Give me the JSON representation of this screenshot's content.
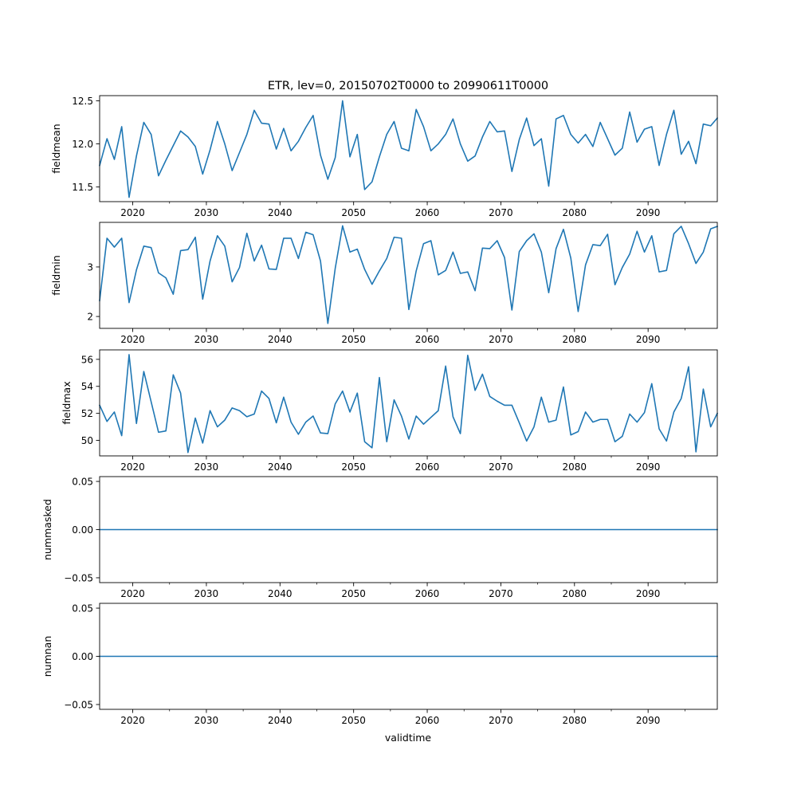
{
  "figure": {
    "title": "ETR, lev=0, 20150702T0000 to 20990611T0000",
    "xlabel": "validtime"
  },
  "colors": {
    "line": "#1f77b4",
    "axis": "#000000",
    "background": "#ffffff"
  },
  "chart_data": [
    {
      "type": "line",
      "ylabel": "fieldmean",
      "xlim": [
        2015.5,
        2099.4
      ],
      "ylim": [
        11.33,
        12.56
      ],
      "x_ticks": [
        2020,
        2030,
        2040,
        2050,
        2060,
        2070,
        2080,
        2090
      ],
      "x_tick_labels": [
        "2020",
        "2030",
        "2040",
        "2050",
        "2060",
        "2070",
        "2080",
        "2090"
      ],
      "y_ticks": [
        11.5,
        12.0,
        12.5
      ],
      "y_tick_labels": [
        "11.5",
        "12.0",
        "12.5"
      ],
      "x": [
        2015.5,
        2016.5,
        2017.5,
        2018.5,
        2019.5,
        2020.5,
        2021.5,
        2022.5,
        2023.5,
        2024.5,
        2025.5,
        2026.5,
        2027.5,
        2028.5,
        2029.5,
        2030.5,
        2031.5,
        2032.5,
        2033.5,
        2034.5,
        2035.5,
        2036.5,
        2037.5,
        2038.5,
        2039.5,
        2040.5,
        2041.5,
        2042.5,
        2043.5,
        2044.5,
        2045.5,
        2046.5,
        2047.5,
        2048.5,
        2049.5,
        2050.5,
        2051.5,
        2052.5,
        2053.5,
        2054.5,
        2055.5,
        2056.5,
        2057.5,
        2058.5,
        2059.5,
        2060.5,
        2061.5,
        2062.5,
        2063.5,
        2064.5,
        2065.5,
        2066.5,
        2067.5,
        2068.5,
        2069.5,
        2070.5,
        2071.5,
        2072.5,
        2073.5,
        2074.5,
        2075.5,
        2076.5,
        2077.5,
        2078.5,
        2079.5,
        2080.5,
        2081.5,
        2082.5,
        2083.5,
        2084.5,
        2085.5,
        2086.5,
        2087.5,
        2088.5,
        2089.5,
        2090.5,
        2091.5,
        2092.5,
        2093.5,
        2094.5,
        2095.5,
        2096.5,
        2097.5,
        2098.5,
        2099.4
      ],
      "series": [
        {
          "name": "fieldmean",
          "values": [
            11.75,
            12.06,
            11.82,
            12.2,
            11.38,
            11.86,
            12.25,
            12.11,
            11.63,
            11.81,
            11.98,
            12.15,
            12.08,
            11.97,
            11.65,
            11.93,
            12.26,
            12.0,
            11.69,
            11.9,
            12.11,
            12.39,
            12.24,
            12.23,
            11.94,
            12.18,
            11.92,
            12.03,
            12.19,
            12.33,
            11.87,
            11.59,
            11.84,
            12.5,
            11.85,
            12.11,
            11.47,
            11.56,
            11.85,
            12.11,
            12.26,
            11.95,
            11.92,
            12.4,
            12.2,
            11.92,
            12.0,
            12.11,
            12.29,
            12.0,
            11.8,
            11.86,
            12.08,
            12.26,
            12.14,
            12.15,
            11.68,
            12.05,
            12.3,
            11.98,
            12.06,
            11.51,
            12.29,
            12.33,
            12.11,
            12.01,
            12.11,
            11.97,
            12.25,
            12.06,
            11.87,
            11.95,
            12.37,
            12.02,
            12.17,
            12.2,
            11.75,
            12.11,
            12.39,
            11.88,
            12.03,
            11.77,
            12.23,
            12.21,
            12.3
          ]
        }
      ]
    },
    {
      "type": "line",
      "ylabel": "fieldmin",
      "xlim": [
        2015.5,
        2099.4
      ],
      "ylim": [
        1.76,
        3.9
      ],
      "x_ticks": [
        2020,
        2030,
        2040,
        2050,
        2060,
        2070,
        2080,
        2090
      ],
      "x_tick_labels": [
        "2020",
        "2030",
        "2040",
        "2050",
        "2060",
        "2070",
        "2080",
        "2090"
      ],
      "y_ticks": [
        2,
        3
      ],
      "y_tick_labels": [
        "2",
        "3"
      ],
      "x": [
        2015.5,
        2016.5,
        2017.5,
        2018.5,
        2019.5,
        2020.5,
        2021.5,
        2022.5,
        2023.5,
        2024.5,
        2025.5,
        2026.5,
        2027.5,
        2028.5,
        2029.5,
        2030.5,
        2031.5,
        2032.5,
        2033.5,
        2034.5,
        2035.5,
        2036.5,
        2037.5,
        2038.5,
        2039.5,
        2040.5,
        2041.5,
        2042.5,
        2043.5,
        2044.5,
        2045.5,
        2046.5,
        2047.5,
        2048.5,
        2049.5,
        2050.5,
        2051.5,
        2052.5,
        2053.5,
        2054.5,
        2055.5,
        2056.5,
        2057.5,
        2058.5,
        2059.5,
        2060.5,
        2061.5,
        2062.5,
        2063.5,
        2064.5,
        2065.5,
        2066.5,
        2067.5,
        2068.5,
        2069.5,
        2070.5,
        2071.5,
        2072.5,
        2073.5,
        2074.5,
        2075.5,
        2076.5,
        2077.5,
        2078.5,
        2079.5,
        2080.5,
        2081.5,
        2082.5,
        2083.5,
        2084.5,
        2085.5,
        2086.5,
        2087.5,
        2088.5,
        2089.5,
        2090.5,
        2091.5,
        2092.5,
        2093.5,
        2094.5,
        2095.5,
        2096.5,
        2097.5,
        2098.5,
        2099.4
      ],
      "series": [
        {
          "name": "fieldmin",
          "values": [
            2.32,
            3.58,
            3.4,
            3.58,
            2.28,
            2.94,
            3.42,
            3.39,
            2.88,
            2.78,
            2.45,
            3.33,
            3.35,
            3.6,
            2.35,
            3.12,
            3.63,
            3.42,
            2.7,
            2.99,
            3.68,
            3.12,
            3.44,
            2.96,
            2.95,
            3.58,
            3.58,
            3.17,
            3.7,
            3.65,
            3.12,
            1.86,
            2.97,
            3.83,
            3.3,
            3.36,
            2.95,
            2.65,
            2.92,
            3.17,
            3.6,
            3.58,
            2.14,
            2.92,
            3.47,
            3.53,
            2.84,
            2.93,
            3.3,
            2.87,
            2.9,
            2.52,
            3.38,
            3.37,
            3.53,
            3.19,
            2.13,
            3.31,
            3.53,
            3.67,
            3.3,
            2.48,
            3.37,
            3.76,
            3.18,
            2.1,
            3.04,
            3.45,
            3.43,
            3.66,
            2.64,
            2.99,
            3.26,
            3.72,
            3.3,
            3.63,
            2.9,
            2.93,
            3.67,
            3.82,
            3.47,
            3.07,
            3.3,
            3.77,
            3.82
          ]
        }
      ]
    },
    {
      "type": "line",
      "ylabel": "fieldmax",
      "xlim": [
        2015.5,
        2099.4
      ],
      "ylim": [
        48.85,
        56.7
      ],
      "x_ticks": [
        2020,
        2030,
        2040,
        2050,
        2060,
        2070,
        2080,
        2090
      ],
      "x_tick_labels": [
        "2020",
        "2030",
        "2040",
        "2050",
        "2060",
        "2070",
        "2080",
        "2090"
      ],
      "y_ticks": [
        50,
        52,
        54,
        56
      ],
      "y_tick_labels": [
        "50",
        "52",
        "54",
        "56"
      ],
      "x": [
        2015.5,
        2016.5,
        2017.5,
        2018.5,
        2019.5,
        2020.5,
        2021.5,
        2022.5,
        2023.5,
        2024.5,
        2025.5,
        2026.5,
        2027.5,
        2028.5,
        2029.5,
        2030.5,
        2031.5,
        2032.5,
        2033.5,
        2034.5,
        2035.5,
        2036.5,
        2037.5,
        2038.5,
        2039.5,
        2040.5,
        2041.5,
        2042.5,
        2043.5,
        2044.5,
        2045.5,
        2046.5,
        2047.5,
        2048.5,
        2049.5,
        2050.5,
        2051.5,
        2052.5,
        2053.5,
        2054.5,
        2055.5,
        2056.5,
        2057.5,
        2058.5,
        2059.5,
        2060.5,
        2061.5,
        2062.5,
        2063.5,
        2064.5,
        2065.5,
        2066.5,
        2067.5,
        2068.5,
        2069.5,
        2070.5,
        2071.5,
        2072.5,
        2073.5,
        2074.5,
        2075.5,
        2076.5,
        2077.5,
        2078.5,
        2079.5,
        2080.5,
        2081.5,
        2082.5,
        2083.5,
        2084.5,
        2085.5,
        2086.5,
        2087.5,
        2088.5,
        2089.5,
        2090.5,
        2091.5,
        2092.5,
        2093.5,
        2094.5,
        2095.5,
        2096.5,
        2097.5,
        2098.5,
        2099.4
      ],
      "series": [
        {
          "name": "fieldmax",
          "values": [
            52.6,
            51.4,
            52.1,
            50.35,
            56.35,
            51.25,
            55.1,
            52.85,
            50.6,
            50.7,
            54.85,
            53.5,
            49.1,
            51.65,
            49.8,
            52.2,
            51.0,
            51.5,
            52.4,
            52.2,
            51.75,
            51.95,
            53.65,
            53.1,
            51.3,
            53.2,
            51.35,
            50.45,
            51.35,
            51.8,
            50.55,
            50.5,
            52.7,
            53.65,
            52.1,
            53.5,
            49.9,
            49.45,
            54.65,
            49.9,
            53.0,
            51.8,
            50.1,
            51.8,
            51.2,
            51.7,
            52.2,
            55.5,
            51.75,
            50.5,
            56.3,
            53.7,
            54.9,
            53.25,
            52.9,
            52.6,
            52.6,
            51.3,
            49.95,
            51.0,
            53.2,
            51.35,
            51.5,
            53.95,
            50.4,
            50.65,
            52.1,
            51.35,
            51.55,
            51.55,
            49.9,
            50.3,
            51.95,
            51.35,
            52.05,
            54.2,
            50.85,
            49.95,
            52.1,
            53.1,
            55.45,
            49.15,
            53.8,
            51.0,
            52.0
          ]
        }
      ]
    },
    {
      "type": "line",
      "ylabel": "nummasked",
      "xlim": [
        2015.5,
        2099.4
      ],
      "ylim": [
        -0.055,
        0.055
      ],
      "x_ticks": [
        2020,
        2030,
        2040,
        2050,
        2060,
        2070,
        2080,
        2090
      ],
      "x_tick_labels": [
        "2020",
        "2030",
        "2040",
        "2050",
        "2060",
        "2070",
        "2080",
        "2090"
      ],
      "y_ticks": [
        -0.05,
        0.0,
        0.05
      ],
      "y_tick_labels": [
        "−0.05",
        "0.00",
        "0.05"
      ],
      "x": [
        2015.5,
        2099.4
      ],
      "series": [
        {
          "name": "nummasked",
          "values": [
            0,
            0
          ]
        }
      ]
    },
    {
      "type": "line",
      "ylabel": "numnan",
      "xlim": [
        2015.5,
        2099.4
      ],
      "ylim": [
        -0.055,
        0.055
      ],
      "x_ticks": [
        2020,
        2030,
        2040,
        2050,
        2060,
        2070,
        2080,
        2090
      ],
      "x_tick_labels": [
        "2020",
        "2030",
        "2040",
        "2050",
        "2060",
        "2070",
        "2080",
        "2090"
      ],
      "y_ticks": [
        -0.05,
        0.0,
        0.05
      ],
      "y_tick_labels": [
        "−0.05",
        "0.00",
        "0.05"
      ],
      "x": [
        2015.5,
        2099.4
      ],
      "series": [
        {
          "name": "numnan",
          "values": [
            0,
            0
          ]
        }
      ]
    }
  ]
}
